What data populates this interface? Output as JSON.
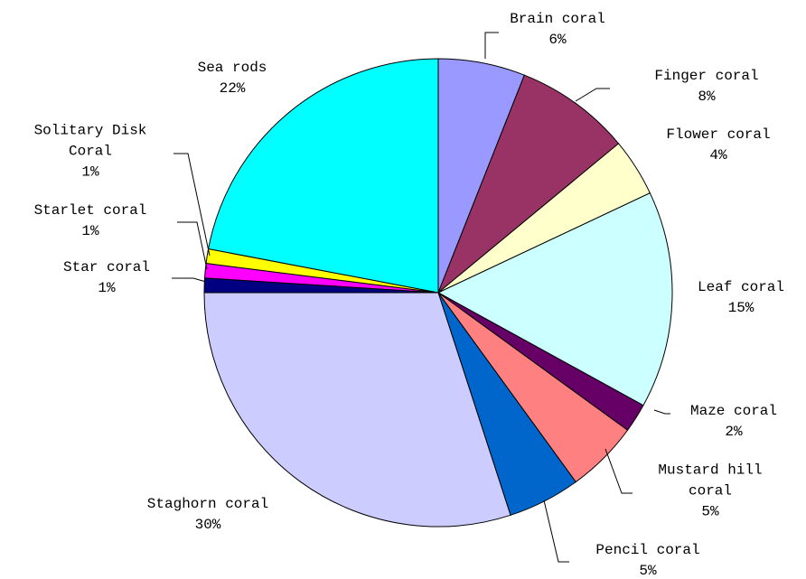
{
  "chart_data": {
    "type": "pie",
    "categories": [
      "Brain coral",
      "Finger coral",
      "Flower coral",
      "Leaf coral",
      "Maze coral",
      "Mustard hill coral",
      "Pencil coral",
      "Staghorn coral",
      "Star coral",
      "Starlet coral",
      "Solitary Disk Coral",
      "Sea rods"
    ],
    "values": [
      6,
      8,
      4,
      15,
      2,
      5,
      5,
      30,
      1,
      1,
      1,
      22
    ],
    "value_labels": [
      "6%",
      "8%",
      "4%",
      "15%",
      "2%",
      "5%",
      "5%",
      "30%",
      "1%",
      "1%",
      "1%",
      "22%"
    ],
    "colors": [
      "#9999ff",
      "#993366",
      "#ffffcc",
      "#ccffff",
      "#660066",
      "#ff8080",
      "#0066cc",
      "#ccccff",
      "#000080",
      "#ff00ff",
      "#ffff00",
      "#00ffff"
    ]
  }
}
